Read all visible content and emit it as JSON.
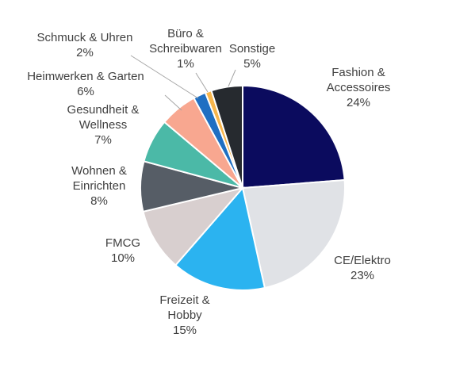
{
  "chart_data": {
    "type": "pie",
    "start_angle_deg": 0,
    "direction": "clockwise",
    "slices": [
      {
        "name": "Fashion & Accessoires",
        "label_lines": [
          "Fashion &",
          "Accessoires"
        ],
        "value": 24,
        "value_label": "24%",
        "color": "#0b0b5e"
      },
      {
        "name": "CE/Elektro",
        "label_lines": [
          "CE/Elektro"
        ],
        "value": 23,
        "value_label": "23%",
        "color": "#e0e2e6"
      },
      {
        "name": "Freizeit & Hobby",
        "label_lines": [
          "Freizeit &",
          "Hobby"
        ],
        "value": 15,
        "value_label": "15%",
        "color": "#2bb3f0"
      },
      {
        "name": "FMCG",
        "label_lines": [
          "FMCG"
        ],
        "value": 10,
        "value_label": "10%",
        "color": "#d8cfcf"
      },
      {
        "name": "Wohnen & Einrichten",
        "label_lines": [
          "Wohnen &",
          "Einrichten"
        ],
        "value": 8,
        "value_label": "8%",
        "color": "#565d66"
      },
      {
        "name": "Gesundheit & Wellness",
        "label_lines": [
          "Gesundheit &",
          "Wellness"
        ],
        "value": 7,
        "value_label": "7%",
        "color": "#4bb9a7"
      },
      {
        "name": "Heimwerken & Garten",
        "label_lines": [
          "Heimwerken & Garten"
        ],
        "value": 6,
        "value_label": "6%",
        "color": "#f8a790"
      },
      {
        "name": "Schmuck & Uhren",
        "label_lines": [
          "Schmuck & Uhren"
        ],
        "value": 2,
        "value_label": "2%",
        "color": "#1f6fc2"
      },
      {
        "name": "Büro & Schreibwaren",
        "label_lines": [
          "Büro &",
          "Schreibwaren"
        ],
        "value": 1,
        "value_label": "1%",
        "color": "#f8b64c"
      },
      {
        "name": "Sonstige",
        "label_lines": [
          "Sonstige"
        ],
        "value": 5,
        "value_label": "5%",
        "color": "#262a2f"
      }
    ]
  }
}
